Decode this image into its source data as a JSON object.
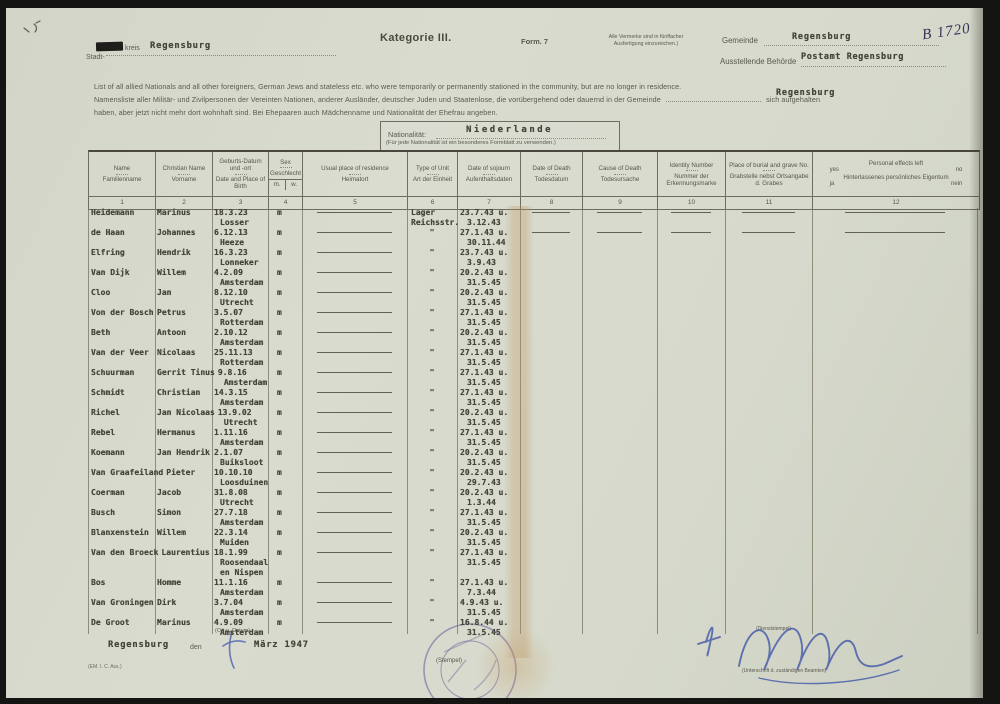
{
  "doc": {
    "kategorie": "Kategorie III.",
    "form_no": "Form. 7",
    "form_note_1": "Alle Vermerke sind in fünffacher",
    "form_note_2": "Ausfertigung einzureichen.)",
    "corner_ref": "B 1720"
  },
  "header": {
    "stadt_label": "Stadt-",
    "kreis_label": "kreis",
    "stadtkreis_value": "Regensburg",
    "gemeinde_label": "Gemeinde",
    "gemeinde_value": "Regensburg",
    "behoerde_label": "Ausstellende Behörde",
    "behoerde_value": "Postamt Regensburg"
  },
  "intro": {
    "line1_en": "List of all allied Nationals and all other foreigners, German Jews and stateless etc. who were temporarily or permanently stationed in the community, but are no longer in residence.",
    "line2_de_pre": "Namensliste aller Militär- und Zivilpersonen der Vereinten Nationen, anderer Ausländer, deutscher Juden und Staatenlose, die vorübergehend oder dauernd in der Gemeinde",
    "line2_value": "Regensburg",
    "line2_post": "sich aufgehalten",
    "line3": "haben, aber jetzt nicht mehr dort wohnhaft sind. Bei Ehepaaren auch Mädchenname und Nationalität der Ehefrau angeben."
  },
  "nationality_box": {
    "label": "Nationalität:",
    "value": "Niederlande",
    "note": "(Für jede Nationalität ist ein besonderes Formblatt zu verwenden.)"
  },
  "table": {
    "columns": [
      {
        "w": 67,
        "num": "1",
        "lines": [
          "Name",
          "Familienname"
        ]
      },
      {
        "w": 57,
        "num": "2",
        "lines": [
          "Christian Name",
          "Vorname"
        ]
      },
      {
        "w": 56,
        "num": "3",
        "lines": [
          "Geburts-Datum und -ort",
          "Date and Place of Birth"
        ]
      },
      {
        "w": 34,
        "num": "4",
        "lines": [
          "Sex",
          "Geschlecht"
        ],
        "mw": [
          "m.",
          "w."
        ]
      },
      {
        "w": 105,
        "num": "5",
        "lines": [
          "Usual place of residence",
          "Heimatort"
        ]
      },
      {
        "w": 50,
        "num": "6",
        "lines": [
          "Type of Unit",
          "Art der Einheit"
        ]
      },
      {
        "w": 63,
        "num": "7",
        "lines": [
          "Date of sojourn",
          "Aufenthaltsdaten"
        ]
      },
      {
        "w": 62,
        "num": "8",
        "lines": [
          "Date of Death",
          "Todesdatum"
        ]
      },
      {
        "w": 75,
        "num": "9",
        "lines": [
          "Cause of Death",
          "Todesursache"
        ]
      },
      {
        "w": 68,
        "num": "10",
        "lines": [
          "Identity Number",
          "Nummer der Erkennungsmarke"
        ]
      },
      {
        "w": 87,
        "num": "11",
        "lines": [
          "Place of burial and grave No.",
          "Grabstelle nebst Ortsangabe d. Grabes"
        ]
      },
      {
        "w": 166,
        "num": "12",
        "lines": [
          "Personal effects left",
          "Hinterlassenes persönliches Eigentum"
        ],
        "yn1": [
          "yes",
          "no"
        ],
        "yn2": [
          "ja",
          "nein"
        ]
      }
    ],
    "rows": [
      {
        "name": "Heidemann",
        "first": "Marinus",
        "birth_date": "18.3.23",
        "birth_place": "Losser",
        "sex": "m",
        "residence": "—",
        "unit": [
          "Lager",
          "Reichsstr."
        ],
        "sojourn": [
          "23.7.43 u.",
          "3.12.43"
        ],
        "tail_dashes": true
      },
      {
        "name": "de Haan",
        "first": "Johannes",
        "birth_date": "6.12.13",
        "birth_place": "Heeze",
        "sex": "m",
        "residence": "—",
        "unit": [
          "\""
        ],
        "sojourn": [
          "27.1.43 u.",
          "30.11.44"
        ],
        "tail_dashes": true
      },
      {
        "name": "Elfring",
        "first": "Hendrik",
        "birth_date": "16.3.23",
        "birth_place": "Lonneker",
        "sex": "m",
        "residence": "—",
        "unit": [
          "\""
        ],
        "sojourn": [
          "23.7.43 u.",
          "3.9.43"
        ]
      },
      {
        "name": "Van Dijk",
        "first": "Willem",
        "birth_date": "4.2.09",
        "birth_place": "Amsterdam",
        "sex": "m",
        "residence": "—",
        "unit": [
          "\""
        ],
        "sojourn": [
          "20.2.43 u.",
          "31.5.45"
        ]
      },
      {
        "name": "Cloo",
        "first": "Jan",
        "birth_date": "8.12.10",
        "birth_place": "Utrecht",
        "sex": "m",
        "residence": "—",
        "unit": [
          "\""
        ],
        "sojourn": [
          "20.2.43 u.",
          "31.5.45"
        ]
      },
      {
        "name": "Von der Bosch",
        "first": "Petrus",
        "birth_date": "3.5.07",
        "birth_place": "Rotterdam",
        "sex": "m",
        "residence": "—",
        "unit": [
          "\""
        ],
        "sojourn": [
          "27.1.43 u.",
          "31.5.45"
        ]
      },
      {
        "name": "Beth",
        "first": "Antoon",
        "birth_date": "2.10.12",
        "birth_place": "Amsterdam",
        "sex": "m",
        "residence": "—",
        "unit": [
          "\""
        ],
        "sojourn": [
          "20.2.43 u.",
          "31.5.45"
        ]
      },
      {
        "name": "Van der Veer",
        "first": "Nicolaas",
        "birth_date": "25.11.13",
        "birth_place": "Rotterdam",
        "sex": "m",
        "residence": "—",
        "unit": [
          "\""
        ],
        "sojourn": [
          "27.1.43 u.",
          "31.5.45"
        ]
      },
      {
        "name": "Schuurman",
        "first": "Gerrit Tinus",
        "birth_date": "9.8.16",
        "birth_place": "Amsterdam",
        "sex": "m",
        "residence": "—",
        "unit": [
          "\""
        ],
        "sojourn": [
          "27.1.43 u.",
          "31.5.45"
        ]
      },
      {
        "name": "Schmidt",
        "first": "Christian",
        "birth_date": "14.3.15",
        "birth_place": "Amsterdam",
        "sex": "m",
        "residence": "—",
        "unit": [
          "\""
        ],
        "sojourn": [
          "27.1.43 u.",
          "31.5.45"
        ]
      },
      {
        "name": "Richel",
        "first": "Jan Nicolaas",
        "birth_date": "13.9.02",
        "birth_place": "Utrecht",
        "sex": "m",
        "residence": "—",
        "unit": [
          "\""
        ],
        "sojourn": [
          "20.2.43 u.",
          "31.5.45"
        ]
      },
      {
        "name": "Rebel",
        "first": "Hermanus",
        "birth_date": "1.11.16",
        "birth_place": "Amsterdam",
        "sex": "m",
        "residence": "—",
        "unit": [
          "\""
        ],
        "sojourn": [
          "27.1.43 u.",
          "31.5.45"
        ]
      },
      {
        "name": "Koemann",
        "first": "Jan Hendrik",
        "birth_date": "2.1.07",
        "birth_place": "Buiksloot",
        "sex": "m",
        "residence": "—",
        "unit": [
          "\""
        ],
        "sojourn": [
          "20.2.43 u.",
          "31.5.45"
        ]
      },
      {
        "name": "Van Graafeiland",
        "first": "Pieter",
        "birth_date": "10.10.10",
        "birth_place": "Loosduinen",
        "sex": "m",
        "residence": "—",
        "unit": [
          "\""
        ],
        "sojourn": [
          "20.2.43 u.",
          "29.7.43"
        ]
      },
      {
        "name": "Coerman",
        "first": "Jacob",
        "birth_date": "31.8.08",
        "birth_place": "Utrecht",
        "sex": "m",
        "residence": "—",
        "unit": [
          "\""
        ],
        "sojourn": [
          "20.2.43 u.",
          "1.3.44"
        ]
      },
      {
        "name": "Busch",
        "first": "Simon",
        "birth_date": "27.7.18",
        "birth_place": "Amsterdam",
        "sex": "m",
        "residence": "—",
        "unit": [
          "\""
        ],
        "sojourn": [
          "27.1.43 u.",
          "31.5.45"
        ]
      },
      {
        "name": "Blanxenstein",
        "first": "Willem",
        "birth_date": "22.3.14",
        "birth_place": "Muiden",
        "sex": "m",
        "residence": "—",
        "unit": [
          "\""
        ],
        "sojourn": [
          "20.2.43 u.",
          "31.5.45"
        ]
      },
      {
        "name": "Van den Broeck",
        "first": "Laurentius",
        "birth_date": "18.1.99",
        "birth_place": "Roosendaal",
        "birth_place2": "en Nispen",
        "sex": "m",
        "residence": "—",
        "unit": [
          "\""
        ],
        "sojourn": [
          "27.1.43 u.",
          "31.5.45"
        ],
        "tall": true
      },
      {
        "name": "Bos",
        "first": "Homme",
        "birth_date": "11.1.16",
        "birth_place": "Amsterdam",
        "sex": "m",
        "residence": "—",
        "unit": [
          "\""
        ],
        "sojourn": [
          "27.1.43 u.",
          "7.3.44"
        ]
      },
      {
        "name": "Van Groningen",
        "first": "Dirk",
        "birth_date": "3.7.04",
        "birth_place": "Amsterdam",
        "sex": "m",
        "residence": "—",
        "unit": [
          "\""
        ],
        "sojourn": [
          "4.9.43 u.",
          "31.5.45"
        ]
      },
      {
        "name": "De Groot",
        "first": "Marinus",
        "birth_date": "4.9.09",
        "birth_place": "Amsterdam",
        "sex": "m",
        "residence": "—",
        "unit": [
          "\""
        ],
        "sojourn": [
          "16.8.44 u.",
          "31.5.45"
        ]
      }
    ]
  },
  "footer": {
    "ort_datum_label": "(Ort u. Datum)",
    "place": "Regensburg",
    "den_label": "den",
    "date_rest": "März 1947",
    "form_print": "(EM. I. C. Ass.)",
    "stempel_label": "(Stempel)",
    "dienststempel_label": "(Dienststempel)",
    "signature_label": "(Unterschrift d. zuständigen Beamten)"
  }
}
